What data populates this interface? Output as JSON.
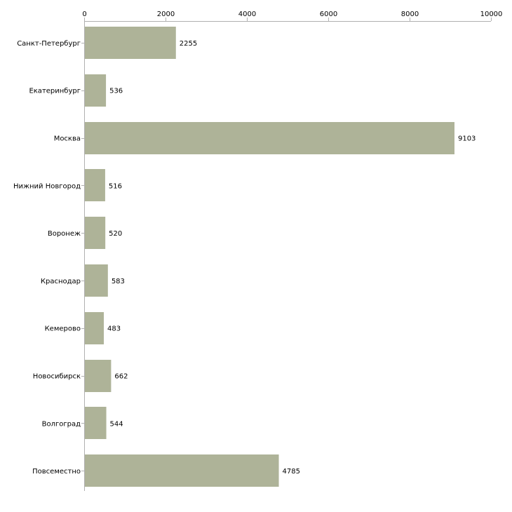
{
  "chart_data": {
    "type": "bar",
    "orientation": "horizontal",
    "title": "",
    "xlabel": "",
    "ylabel": "",
    "xlim": [
      0,
      10000
    ],
    "x_ticks": [
      "0",
      "2000",
      "4000",
      "6000",
      "8000",
      "10000"
    ],
    "x_tick_values": [
      0,
      2000,
      4000,
      6000,
      8000,
      10000
    ],
    "x_axis_position": "top",
    "grid": false,
    "categories": [
      "Санкт-Петербург",
      "Екатеринбург",
      "Москва",
      "Нижний Новгород",
      "Воронеж",
      "Краснодар",
      "Кемерово",
      "Новосибирск",
      "Волгоград",
      "Повсеместно"
    ],
    "values": [
      2255,
      536,
      9103,
      516,
      520,
      583,
      483,
      662,
      544,
      4785
    ],
    "bar_color": "#aeb398",
    "axis_color": "#b0b0b0",
    "text_color": "#000000"
  }
}
